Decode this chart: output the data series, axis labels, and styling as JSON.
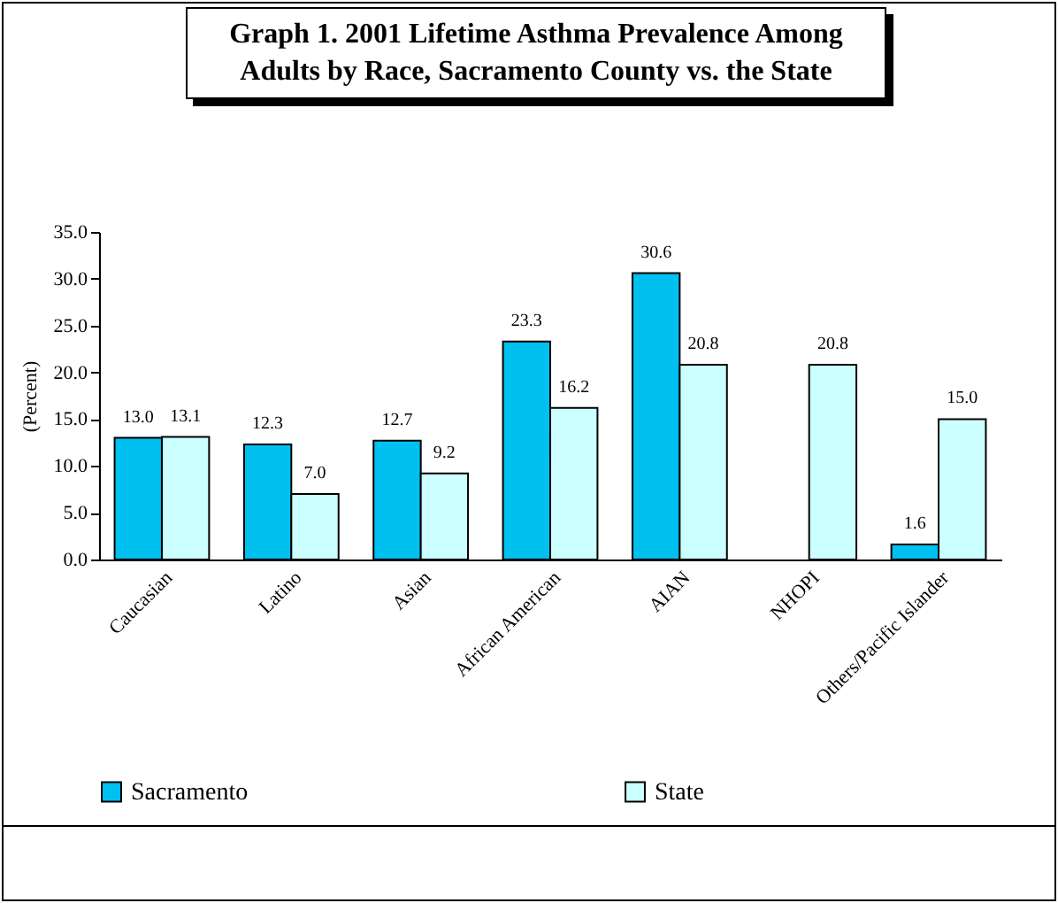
{
  "chart_data": {
    "type": "bar",
    "title": "Graph 1.  2001 Lifetime Asthma Prevalence Among Adults by Race, Sacramento County vs. the State",
    "ylabel": "(Percent)",
    "categories": [
      "Caucasian",
      "Latino",
      "Asian",
      "African American",
      "AIAN",
      "NHOPI",
      "Others/Pacific Islander"
    ],
    "series": [
      {
        "name": "Sacramento",
        "color": "#00c0f0",
        "values": [
          13.0,
          12.3,
          12.7,
          23.3,
          30.6,
          null,
          1.6
        ],
        "value_labels": [
          "13.0",
          "12.3",
          "12.7",
          "23.3",
          "30.6",
          null,
          "1.6"
        ]
      },
      {
        "name": "State",
        "color": "#ccffff",
        "values": [
          13.1,
          7.0,
          9.2,
          16.2,
          20.8,
          20.8,
          15.0
        ],
        "value_labels": [
          "13.1",
          "7.0",
          "9.2",
          "16.2",
          "20.8",
          "20.8",
          "15.0"
        ]
      }
    ],
    "ylim": [
      0,
      35
    ],
    "yticks": [
      {
        "value": 0,
        "label": "0.0"
      },
      {
        "value": 5,
        "label": "5.0"
      },
      {
        "value": 10,
        "label": "10.0"
      },
      {
        "value": 15,
        "label": "15.0"
      },
      {
        "value": 20,
        "label": "20.0"
      },
      {
        "value": 25,
        "label": "25.0"
      },
      {
        "value": 30,
        "label": "30.0"
      },
      {
        "value": 35,
        "label": "35.0"
      }
    ],
    "legend": "bottom"
  }
}
